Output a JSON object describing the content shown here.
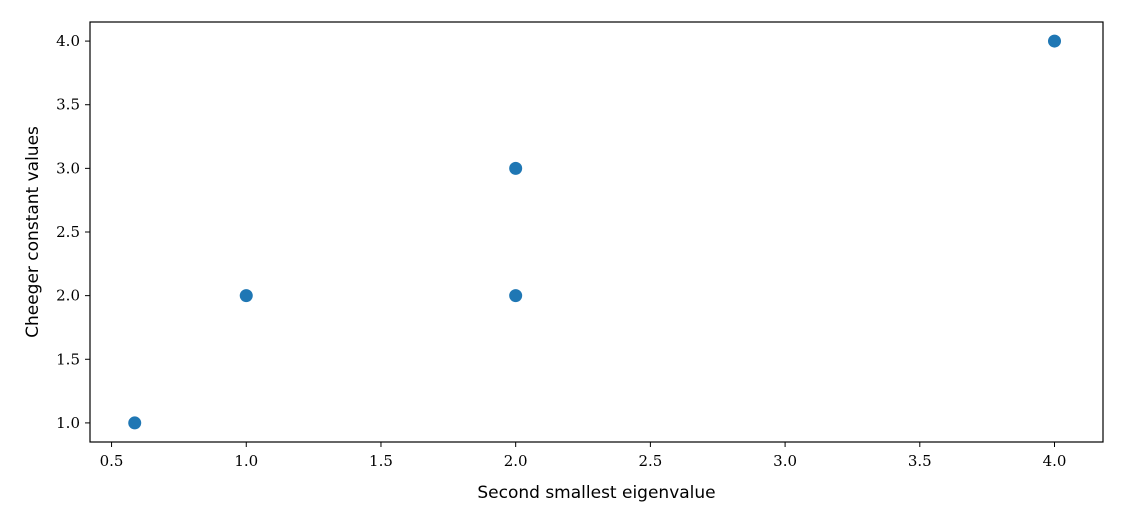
{
  "chart_data": {
    "type": "scatter",
    "xlabel": "Second smallest eigenvalue",
    "ylabel": "Cheeger constant values",
    "xlim": [
      0.42,
      4.18
    ],
    "ylim": [
      0.85,
      4.15
    ],
    "x_ticks": [
      0.5,
      1.0,
      1.5,
      2.0,
      2.5,
      3.0,
      3.5,
      4.0
    ],
    "x_tick_labels": [
      "0.5",
      "1.0",
      "1.5",
      "2.0",
      "2.5",
      "3.0",
      "3.5",
      "4.0"
    ],
    "y_ticks": [
      1.0,
      1.5,
      2.0,
      2.5,
      3.0,
      3.5,
      4.0
    ],
    "y_tick_labels": [
      "1.0",
      "1.5",
      "2.0",
      "2.5",
      "3.0",
      "3.5",
      "4.0"
    ],
    "grid": false,
    "marker_color": "#1f77b4",
    "points": [
      {
        "x": 0.586,
        "y": 1.0
      },
      {
        "x": 1.0,
        "y": 2.0
      },
      {
        "x": 2.0,
        "y": 2.0
      },
      {
        "x": 2.0,
        "y": 3.0
      },
      {
        "x": 4.0,
        "y": 4.0
      }
    ]
  }
}
